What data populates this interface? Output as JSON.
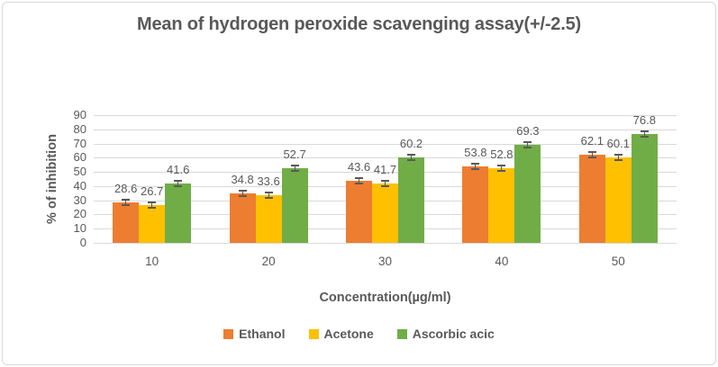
{
  "chart_data": {
    "type": "bar",
    "title": "Mean of hydrogen peroxide scavenging assay(+/-2.5)",
    "xlabel": "Concentration(µg/ml)",
    "ylabel": "% of inhibition",
    "categories": [
      "10",
      "20",
      "30",
      "40",
      "50"
    ],
    "series": [
      {
        "name": "Ethanol",
        "color": "#ED7D31",
        "values": [
          28.6,
          34.8,
          43.6,
          53.8,
          62.1
        ]
      },
      {
        "name": "Acetone",
        "color": "#FFC000",
        "values": [
          26.7,
          33.6,
          41.7,
          52.8,
          60.1
        ]
      },
      {
        "name": "Ascorbic acic",
        "color": "#70AD47",
        "values": [
          41.6,
          52.7,
          60.2,
          69.3,
          76.8
        ]
      }
    ],
    "error_bar_value": 2.5,
    "ylim": [
      0,
      90
    ],
    "ytick_step": 10,
    "yticks": [
      "0",
      "10",
      "20",
      "30",
      "40",
      "50",
      "60",
      "70",
      "80",
      "90"
    ],
    "grid": true,
    "legend_position": "bottom",
    "data_labels": true
  },
  "style": {
    "text_color": "#595959",
    "grid_color": "#D9D9D9",
    "error_bar_color": "#595959",
    "frame_border_color": "#D9D9D9",
    "background": "#FFFFFF"
  }
}
